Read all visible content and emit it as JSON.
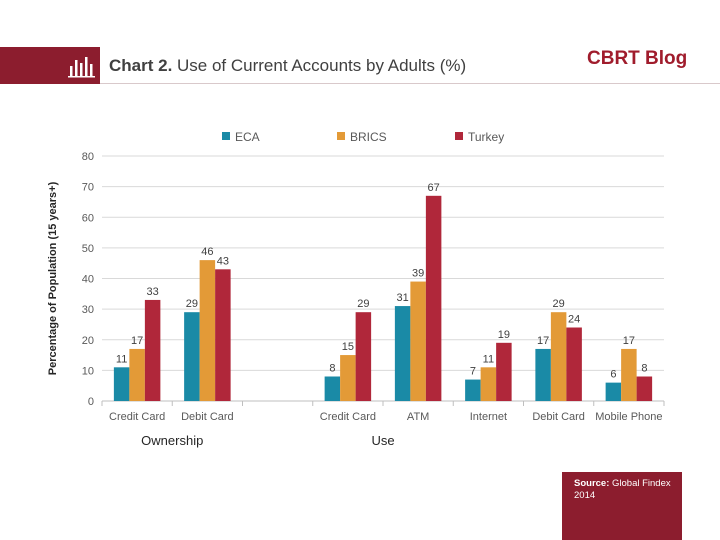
{
  "header": {
    "title_bold": "Chart 2.",
    "title_rest": " Use of Current Accounts by Adults (%)",
    "blog": "CBRT Blog"
  },
  "source": {
    "label": "Source:",
    "text": " Global Findex 2014"
  },
  "colors": {
    "brand": "#8c1d2e",
    "ECA": "#1a8aa6",
    "BRICS": "#e39a37",
    "Turkey": "#b0273a"
  },
  "chart_data": {
    "type": "bar",
    "ylabel": "Percentage of Population (15 years+)",
    "ylim": [
      0,
      80
    ],
    "yticks": [
      0,
      10,
      20,
      30,
      40,
      50,
      60,
      70,
      80
    ],
    "grid": true,
    "legend": "top",
    "categories": [
      "Credit Card",
      "Debit Card",
      "",
      "Credit Card",
      "ATM",
      "Internet",
      "Debit Card",
      "Mobile Phone"
    ],
    "groups": [
      {
        "label": "Ownership",
        "from": 0,
        "to": 1
      },
      {
        "label": "Use",
        "from": 3,
        "to": 4
      }
    ],
    "series": [
      {
        "name": "ECA",
        "values": [
          11,
          29,
          null,
          8,
          31,
          7,
          17,
          6
        ]
      },
      {
        "name": "BRICS",
        "values": [
          17,
          46,
          null,
          15,
          39,
          11,
          29,
          17
        ]
      },
      {
        "name": "Turkey",
        "values": [
          33,
          43,
          null,
          29,
          67,
          19,
          24,
          8
        ]
      }
    ]
  }
}
